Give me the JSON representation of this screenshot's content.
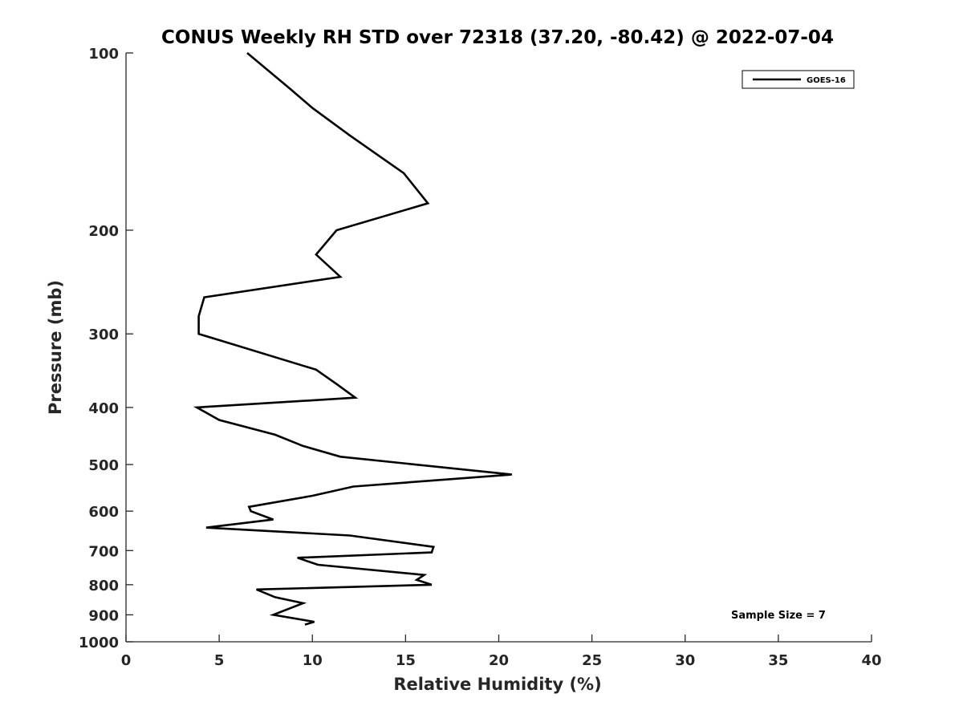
{
  "chart_data": {
    "type": "line",
    "title": "CONUS Weekly RH STD over 72318 (37.20, -80.42) @ 2022-07-04",
    "xlabel": "Relative Humidity (%)",
    "ylabel": "Pressure (mb)",
    "xlim": [
      0,
      40
    ],
    "ylim": [
      100,
      1000
    ],
    "y_scale": "log",
    "y_reversed": true,
    "x_ticks": [
      0,
      5,
      10,
      15,
      20,
      25,
      30,
      35,
      40
    ],
    "y_ticks": [
      100,
      200,
      300,
      400,
      500,
      600,
      700,
      800,
      900,
      1000
    ],
    "grid": false,
    "legend": {
      "location": "top-right",
      "entries": [
        "GOES-16"
      ]
    },
    "annotation": "Sample Size = 7",
    "line_color": "#000000",
    "series": [
      {
        "name": "GOES-16",
        "points": [
          [
            6.5,
            100
          ],
          [
            8.8,
            115
          ],
          [
            10.0,
            124
          ],
          [
            12.0,
            138
          ],
          [
            14.9,
            160
          ],
          [
            16.2,
            180
          ],
          [
            11.3,
            200
          ],
          [
            10.2,
            220
          ],
          [
            11.5,
            240
          ],
          [
            4.2,
            260
          ],
          [
            3.9,
            280
          ],
          [
            3.9,
            300
          ],
          [
            10.2,
            345
          ],
          [
            11.3,
            365
          ],
          [
            12.3,
            385
          ],
          [
            3.8,
            400
          ],
          [
            5.0,
            420
          ],
          [
            8.0,
            445
          ],
          [
            9.5,
            465
          ],
          [
            11.5,
            485
          ],
          [
            20.7,
            520
          ],
          [
            12.2,
            545
          ],
          [
            10.0,
            565
          ],
          [
            6.6,
            590
          ],
          [
            6.7,
            600
          ],
          [
            7.9,
            620
          ],
          [
            4.3,
            640
          ],
          [
            12.0,
            660
          ],
          [
            16.5,
            690
          ],
          [
            16.4,
            705
          ],
          [
            9.2,
            720
          ],
          [
            10.3,
            740
          ],
          [
            16.0,
            770
          ],
          [
            15.6,
            785
          ],
          [
            16.4,
            800
          ],
          [
            7.0,
            815
          ],
          [
            8.0,
            840
          ],
          [
            9.5,
            860
          ],
          [
            7.9,
            900
          ],
          [
            10.1,
            925
          ],
          [
            9.6,
            935
          ]
        ]
      }
    ]
  }
}
